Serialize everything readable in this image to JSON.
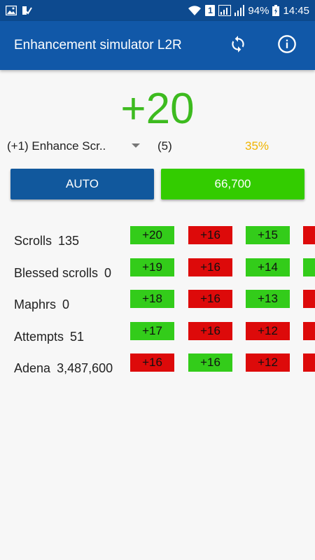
{
  "status_bar": {
    "battery": "94%",
    "time": "14:45",
    "sim": "1"
  },
  "app_bar": {
    "title": "Enhancement simulator L2R",
    "refresh_icon": "refresh-icon",
    "info_icon": "info-icon"
  },
  "level": "+20",
  "selector": {
    "scroll_name": "(+1) Enhance Scr..",
    "count": "(5)",
    "chance": "35%"
  },
  "buttons": {
    "auto": "AUTO",
    "enhance_cost": "66,700"
  },
  "stats": [
    {
      "label": "Scrolls",
      "value": "135"
    },
    {
      "label": "Blessed scrolls",
      "value": "0"
    },
    {
      "label": "Maphrs",
      "value": "0"
    },
    {
      "label": "Attempts",
      "value": "51"
    },
    {
      "label": "Adena",
      "value": "3,487,600"
    }
  ],
  "history": [
    [
      {
        "text": "+20",
        "status": "green"
      },
      {
        "text": "+16",
        "status": "red"
      },
      {
        "text": "+15",
        "status": "green"
      },
      {
        "text": "",
        "status": "red"
      }
    ],
    [
      {
        "text": "+19",
        "status": "green"
      },
      {
        "text": "+16",
        "status": "red"
      },
      {
        "text": "+14",
        "status": "green"
      },
      {
        "text": "",
        "status": "green"
      }
    ],
    [
      {
        "text": "+18",
        "status": "green"
      },
      {
        "text": "+16",
        "status": "red"
      },
      {
        "text": "+13",
        "status": "green"
      },
      {
        "text": "",
        "status": "red"
      }
    ],
    [
      {
        "text": "+17",
        "status": "green"
      },
      {
        "text": "+16",
        "status": "red"
      },
      {
        "text": "+12",
        "status": "red"
      },
      {
        "text": "",
        "status": "red"
      }
    ],
    [
      {
        "text": "+16",
        "status": "red"
      },
      {
        "text": "+16",
        "status": "green"
      },
      {
        "text": "+12",
        "status": "red"
      },
      {
        "text": "",
        "status": "red"
      }
    ]
  ],
  "colors": {
    "primary": "#1158a8",
    "status_bar": "#0d4a8f",
    "success": "#33cc1a",
    "fail": "#dd0a0a",
    "level": "#3dbb1f",
    "chance": "#f0b400"
  }
}
